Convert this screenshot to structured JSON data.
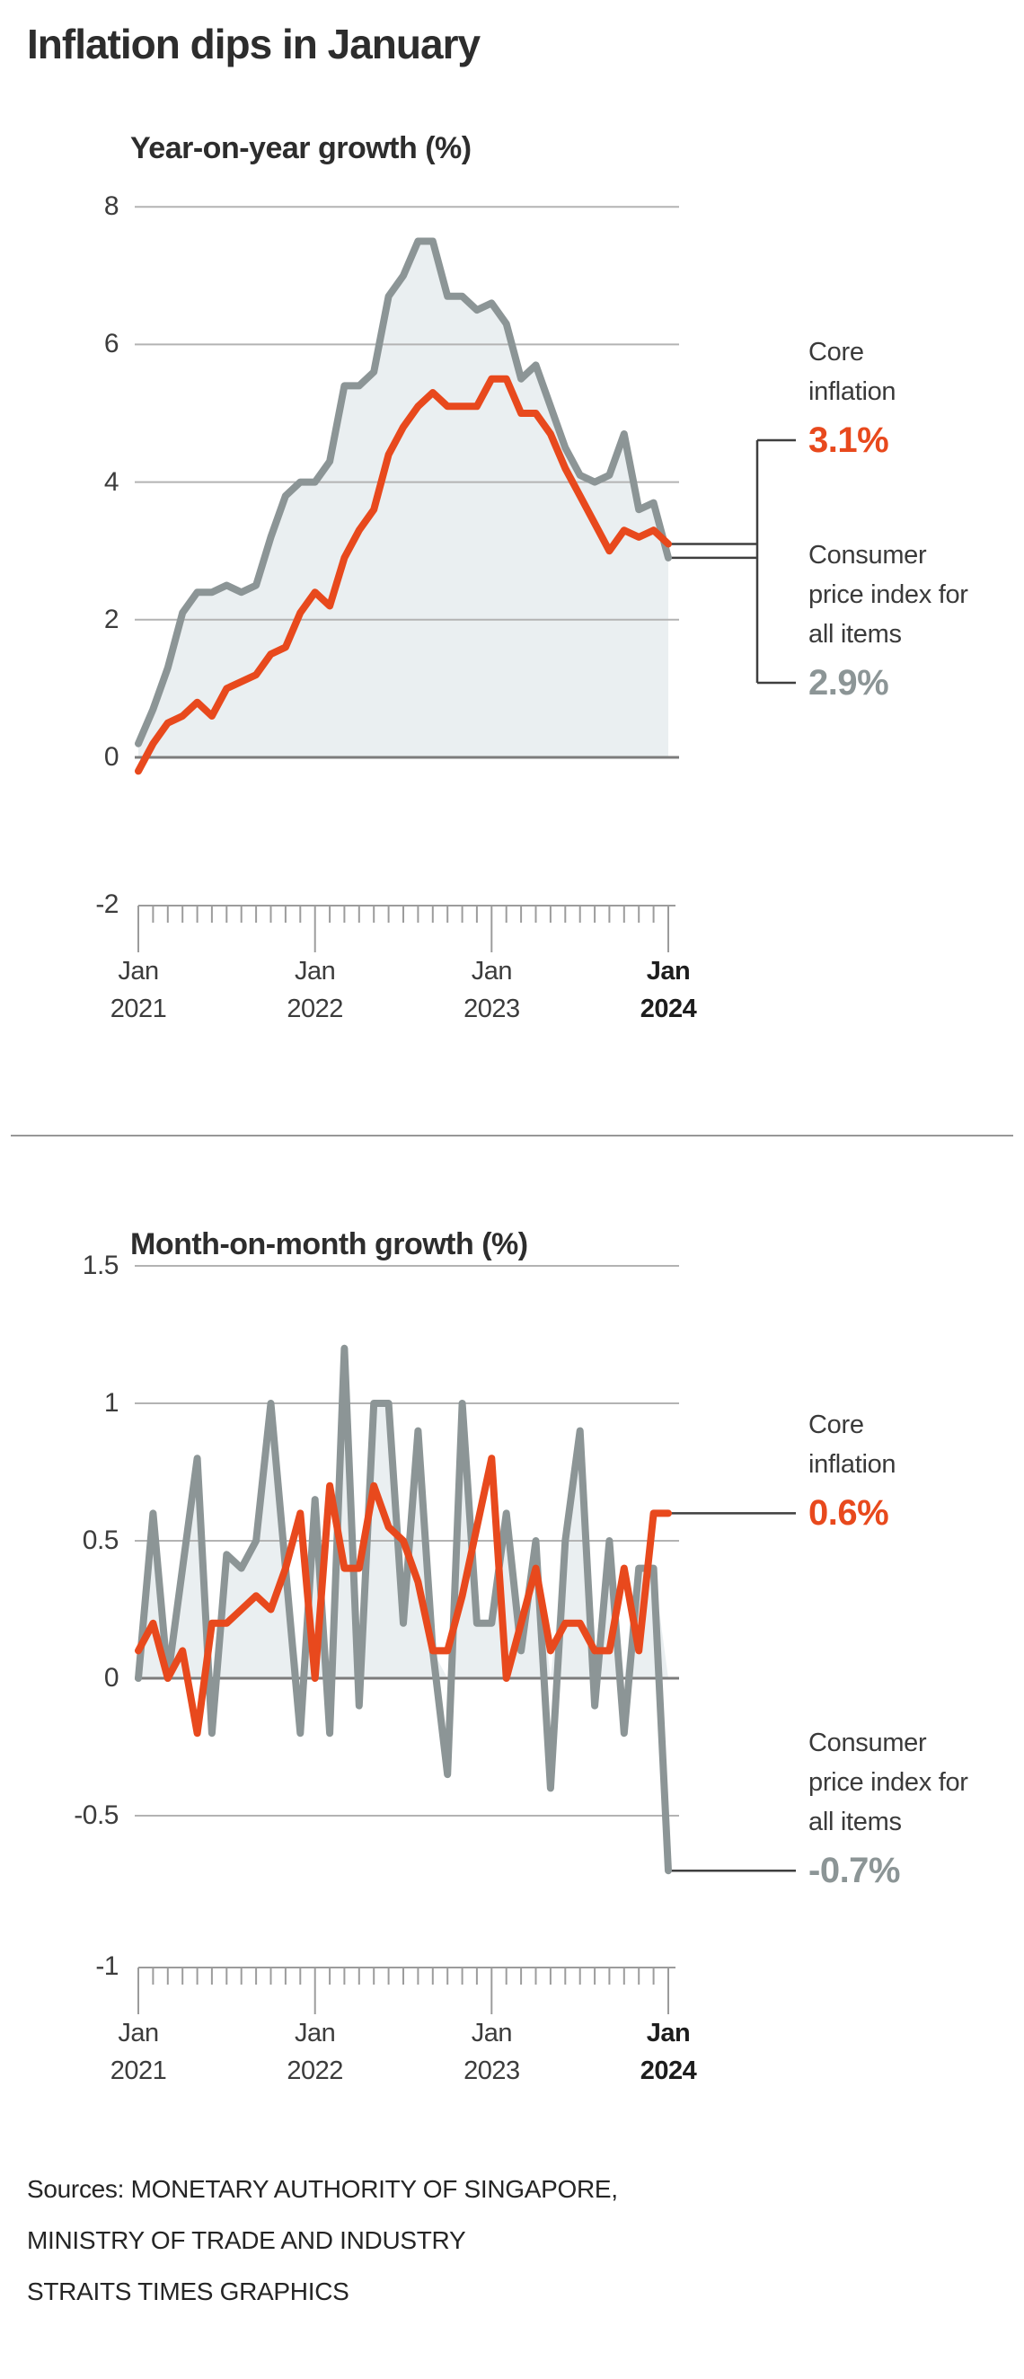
{
  "page": {
    "title": "Inflation dips in January",
    "background": "#ffffff"
  },
  "colors": {
    "orange": "#e8491d",
    "gray_line": "#8c9596",
    "area_fill": "#eaeff1",
    "gridline": "#b3b3b3",
    "baseline": "#7c7c7c",
    "ruler": "#9c9c9c",
    "connector": "#3f3f3f"
  },
  "xaxis": {
    "ticks": [
      {
        "month": "Jan",
        "year": "2021",
        "bold": false
      },
      {
        "month": "Jan",
        "year": "2022",
        "bold": false
      },
      {
        "month": "Jan",
        "year": "2023",
        "bold": false
      },
      {
        "month": "Jan",
        "year": "2024",
        "bold": true
      }
    ]
  },
  "annotations": {
    "yoy": {
      "core_label": "Core inflation",
      "core_value": "3.1%",
      "cpi_label": "Consumer price index for all items",
      "cpi_value": "2.9%"
    },
    "mom": {
      "core_label": "Core inflation",
      "core_value": "0.6%",
      "cpi_label": "Consumer price index for all items",
      "cpi_value": "-0.7%"
    }
  },
  "sources": {
    "lines": [
      "Sources: MONETARY AUTHORITY OF SINGAPORE,",
      "MINISTRY OF TRADE AND INDUSTRY",
      "STRAITS TIMES GRAPHICS"
    ]
  },
  "chart_data": [
    {
      "type": "line",
      "title": "Year-on-year growth (%)",
      "x": "monthly, Jan 2021 - Jan 2024",
      "ylim": [
        -2,
        8
      ],
      "yticks": [
        "8",
        "6",
        "4",
        "2",
        "0",
        "-2"
      ],
      "grid": true,
      "legend_position": "right",
      "series": [
        {
          "name": "Consumer price index for all items",
          "color": "#8c9596",
          "area": true,
          "end_label": "2.9%",
          "values": [
            0.2,
            0.7,
            1.3,
            2.1,
            2.4,
            2.4,
            2.5,
            2.4,
            2.5,
            3.2,
            3.8,
            4.0,
            4.0,
            4.3,
            5.4,
            5.4,
            5.6,
            6.7,
            7.0,
            7.5,
            7.5,
            6.7,
            6.7,
            6.5,
            6.6,
            6.3,
            5.5,
            5.7,
            5.1,
            4.5,
            4.1,
            4.0,
            4.1,
            4.7,
            3.6,
            3.7,
            2.9
          ]
        },
        {
          "name": "Core inflation",
          "color": "#e8491d",
          "area": false,
          "end_label": "3.1%",
          "values": [
            -0.2,
            0.2,
            0.5,
            0.6,
            0.8,
            0.6,
            1.0,
            1.1,
            1.2,
            1.5,
            1.6,
            2.1,
            2.4,
            2.2,
            2.9,
            3.3,
            3.6,
            4.4,
            4.8,
            5.1,
            5.3,
            5.1,
            5.1,
            5.1,
            5.5,
            5.5,
            5.0,
            5.0,
            4.7,
            4.2,
            3.8,
            3.4,
            3.0,
            3.3,
            3.2,
            3.3,
            3.1
          ]
        }
      ]
    },
    {
      "type": "line",
      "title": "Month-on-month growth (%)",
      "x": "monthly, Jan 2021 - Jan 2024",
      "ylim": [
        -1,
        1.5
      ],
      "yticks": [
        "1.5",
        "1",
        "0.5",
        "0",
        "-0.5",
        "-1"
      ],
      "grid": true,
      "legend_position": "right",
      "series": [
        {
          "name": "Consumer price index for all items",
          "color": "#8c9596",
          "area": true,
          "end_label": "-0.7%",
          "values": [
            0.0,
            0.6,
            0.0,
            0.4,
            0.8,
            -0.2,
            0.45,
            0.4,
            0.5,
            1.0,
            0.4,
            -0.2,
            0.65,
            -0.2,
            1.2,
            -0.1,
            1.0,
            1.0,
            0.2,
            0.9,
            0.1,
            -0.35,
            1.0,
            0.2,
            0.2,
            0.6,
            0.1,
            0.5,
            -0.4,
            0.5,
            0.9,
            -0.1,
            0.5,
            -0.2,
            0.4,
            0.4,
            -0.7
          ]
        },
        {
          "name": "Core inflation",
          "color": "#e8491d",
          "area": false,
          "end_label": "0.6%",
          "values": [
            0.1,
            0.2,
            0.0,
            0.1,
            -0.2,
            0.2,
            0.2,
            0.25,
            0.3,
            0.25,
            0.4,
            0.6,
            0.0,
            0.7,
            0.4,
            0.4,
            0.7,
            0.55,
            0.5,
            0.35,
            0.1,
            0.1,
            0.3,
            0.55,
            0.8,
            0.0,
            0.2,
            0.4,
            0.1,
            0.2,
            0.2,
            0.1,
            0.1,
            0.4,
            0.1,
            0.6,
            0.6
          ]
        }
      ]
    }
  ]
}
